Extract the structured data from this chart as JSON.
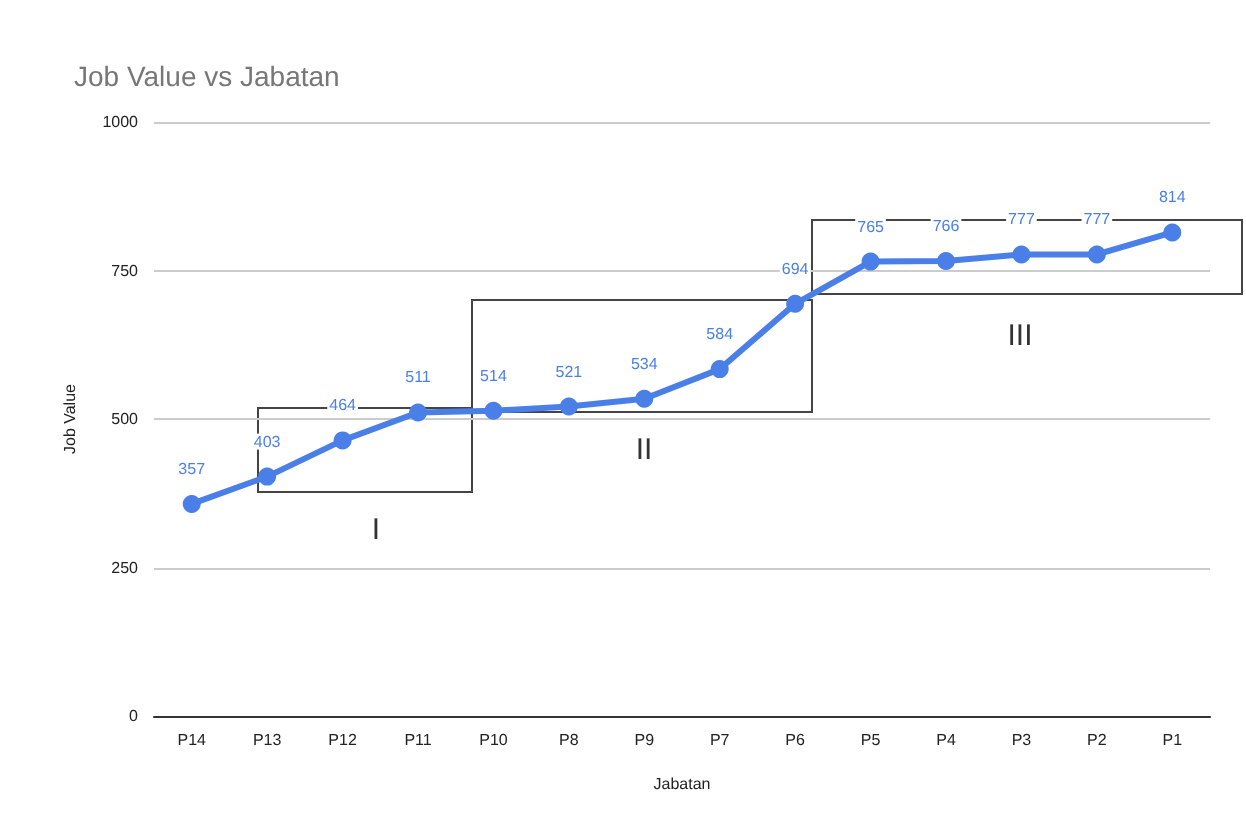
{
  "chart_data": {
    "type": "line",
    "title": "Job Value vs Jabatan",
    "xlabel": "Jabatan",
    "ylabel": "Job Value",
    "categories": [
      "P14",
      "P13",
      "P12",
      "P11",
      "P10",
      "P8",
      "P9",
      "P7",
      "P6",
      "P5",
      "P4",
      "P3",
      "P2",
      "P1"
    ],
    "series": [
      {
        "color": "#4a7fe8",
        "values": [
          357,
          403,
          464,
          511,
          514,
          521,
          534,
          584,
          694,
          765,
          766,
          777,
          777,
          814
        ]
      }
    ],
    "ylim": [
      0,
      1000
    ],
    "yticks": [
      0,
      250,
      500,
      750,
      1000
    ],
    "grid": "y",
    "marker": "circle",
    "line_style": "solid",
    "data_labels": true,
    "annotations": [
      "I",
      "II",
      "III"
    ]
  }
}
